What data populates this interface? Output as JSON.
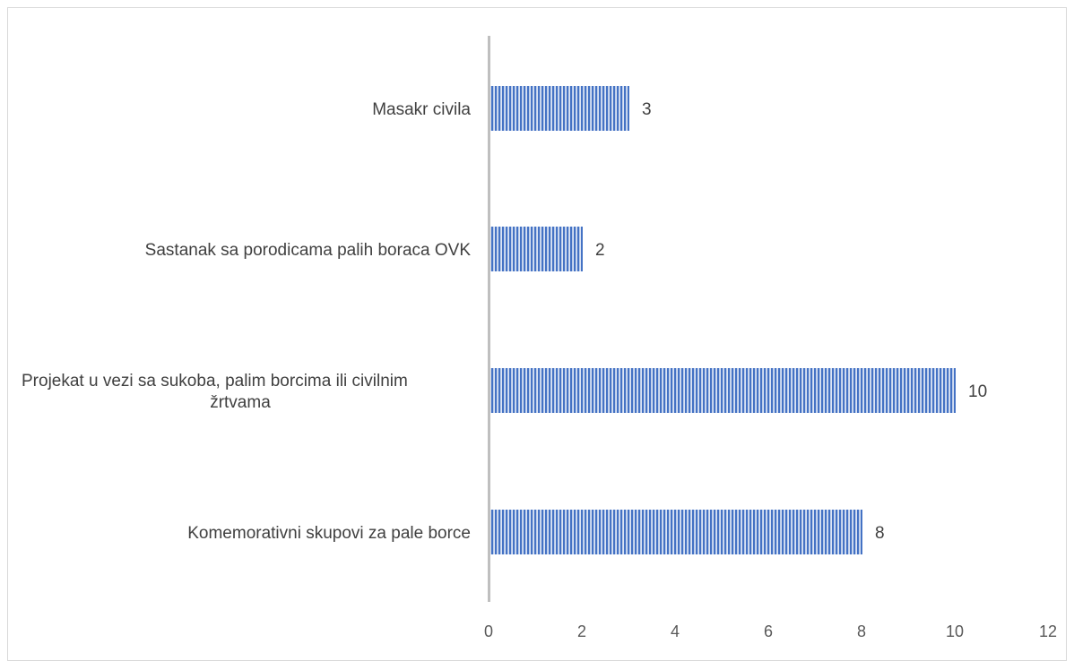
{
  "chart_data": {
    "type": "bar",
    "orientation": "horizontal",
    "categories": [
      "Masakr civila",
      "Sastanak sa porodicama palih boraca OVK",
      "Projekat u vezi sa sukoba, palim borcima ili civilnim žrtvama",
      "Komemorativni skupovi za pale borce"
    ],
    "category_lines": [
      [
        "Masakr civila"
      ],
      [
        "Sastanak sa porodicama palih boraca OVK"
      ],
      [
        "Projekat u vezi sa sukoba, palim borcima ili civilnim",
        "žrtvama"
      ],
      [
        "Komemorativni skupovi za pale borce"
      ]
    ],
    "values": [
      3,
      2,
      10,
      8
    ],
    "data_labels": [
      "3",
      "2",
      "10",
      "8"
    ],
    "xlim": [
      0,
      12
    ],
    "xticks": [
      "0",
      "2",
      "4",
      "6",
      "8",
      "10",
      "12"
    ],
    "title": "",
    "xlabel": "",
    "ylabel": "",
    "grid": false,
    "legend": "none",
    "bar_fill": "vertical-stripes",
    "colors": {
      "bar": "#4472c4",
      "bar_light": "#dbe4f4",
      "axis": "#bfbfbf",
      "text": "#404040"
    }
  }
}
